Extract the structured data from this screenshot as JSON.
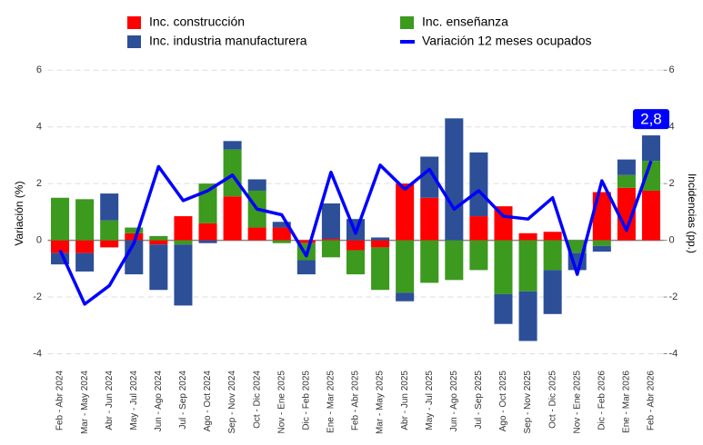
{
  "chart_data": {
    "type": "bar",
    "stacked": true,
    "categories": [
      "Feb - Abr 2024",
      "Mar - May 2024",
      "Abr - Jun 2024",
      "May - Jul 2024",
      "Jun - Ago 2024",
      "Jul - Sep 2024",
      "Ago - Oct 2024",
      "Sep - Nov 2024",
      "Oct - Dic 2024",
      "Nov - Ene 2025",
      "Dic - Feb 2025",
      "Ene - Mar 2025",
      "Feb - Abr 2025",
      "Mar - May 2025",
      "Abr - Jun 2025",
      "May - Jul 2025",
      "Jun - Ago 2025",
      "Jul - Sep 2025",
      "Ago - Oct 2025",
      "Sep - Nov 2025",
      "Oct - Dic 2025",
      "Nov - Ene 2025",
      "Dic - Feb 2026",
      "Ene - Mar 2026",
      "Feb - Abr 2026"
    ],
    "series": [
      {
        "name": "Inc. construcción",
        "type": "bar",
        "axis": "y2",
        "color": "#ff0000",
        "values": [
          -0.45,
          -0.45,
          -0.25,
          0.25,
          -0.15,
          0.85,
          0.6,
          1.55,
          0.45,
          0.45,
          -0.1,
          0.05,
          -0.35,
          -0.25,
          2.0,
          1.5,
          0.0,
          0.85,
          1.2,
          0.25,
          0.3,
          0.0,
          1.7,
          1.85,
          1.75
        ]
      },
      {
        "name": "Inc. enseñanza",
        "type": "bar",
        "axis": "y2",
        "color": "#3c9a1e",
        "values": [
          1.5,
          1.45,
          0.7,
          0.2,
          0.15,
          -0.15,
          1.4,
          1.65,
          1.3,
          -0.1,
          -0.6,
          -0.6,
          -0.85,
          -1.5,
          -1.85,
          -1.5,
          -1.4,
          -1.05,
          -1.9,
          -1.8,
          -1.05,
          -0.45,
          -0.2,
          0.45,
          1.05
        ]
      },
      {
        "name": "Inc. industria manufacturera",
        "type": "bar",
        "axis": "y2",
        "color": "#2c4f98",
        "values": [
          -0.4,
          -0.65,
          0.95,
          -1.2,
          -1.6,
          -2.15,
          -0.1,
          0.3,
          0.4,
          0.2,
          -0.5,
          1.25,
          0.75,
          0.1,
          -0.3,
          1.45,
          4.3,
          2.25,
          -1.05,
          -1.75,
          -1.55,
          -0.6,
          -0.2,
          0.55,
          0.9
        ]
      },
      {
        "name": "Variación 12 meses ocupados",
        "type": "line",
        "color": "#0000ff",
        "values": [
          -0.35,
          -2.25,
          -1.6,
          -0.1,
          2.6,
          1.4,
          1.75,
          2.3,
          1.1,
          0.9,
          -0.55,
          2.4,
          0.25,
          2.65,
          1.8,
          2.5,
          1.1,
          1.75,
          0.85,
          0.75,
          1.5,
          -1.2,
          2.1,
          0.35,
          2.8
        ],
        "value_labels": [
          null,
          null,
          null,
          null,
          null,
          null,
          null,
          null,
          null,
          null,
          null,
          null,
          null,
          null,
          null,
          null,
          null,
          null,
          null,
          null,
          null,
          null,
          null,
          null,
          "2,8"
        ]
      }
    ],
    "ylabel": "Variación (%)",
    "y2label": "Incidencias (pp.)",
    "ylim": [
      -4.4,
      6.2
    ],
    "yticks": [
      -4,
      -2,
      0,
      2,
      4,
      6
    ],
    "y2lim": [
      -4.4,
      6.2
    ],
    "y2ticks": [
      -4,
      -2,
      0,
      2,
      4,
      6
    ],
    "grid": true
  }
}
